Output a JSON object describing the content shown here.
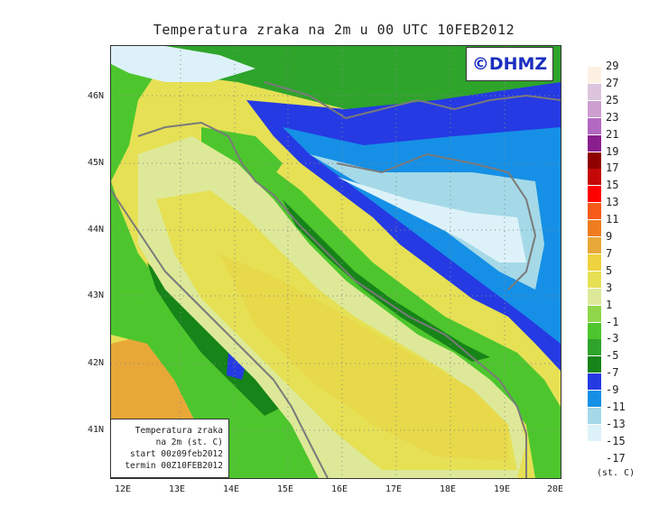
{
  "title": "Temperatura zraka na 2m u 00 UTC 10FEB2012",
  "copyright": "©DHMZ",
  "info_box": [
    "Temperatura zraka",
    "na 2m (st. C)",
    "start 00z09feb2012",
    "termin 00Z10FEB2012"
  ],
  "lat_labels": [
    "46N",
    "45N",
    "44N",
    "43N",
    "42N",
    "41N"
  ],
  "lon_labels": [
    "12E",
    "13E",
    "14E",
    "15E",
    "16E",
    "17E",
    "18E",
    "19E",
    "20E"
  ],
  "legend": {
    "units": "(st. C)",
    "labels": [
      "29",
      "27",
      "25",
      "23",
      "21",
      "19",
      "17",
      "15",
      "13",
      "11",
      "9",
      "7",
      "5",
      "3",
      "1",
      "-1",
      "-3",
      "-5",
      "-7",
      "-9",
      "-11",
      "-13",
      "-15",
      "-17"
    ],
    "colors": [
      "#fdf0e3",
      "#ddc4dd",
      "#cc9fd0",
      "#b268c0",
      "#8a1e8e",
      "#8f0000",
      "#c40808",
      "#ff0000",
      "#f55a1a",
      "#ef7d20",
      "#e8a838",
      "#eed23e",
      "#e6e055",
      "#dde998",
      "#8fd64a",
      "#4dc62d",
      "#2ea42b",
      "#168418",
      "#253ae2",
      "#1590e6",
      "#a5d9e8",
      "#ddf2f8",
      "#ffffff"
    ]
  },
  "map_colors": {
    "sea_warm": "#e8d94a",
    "sea_mid": "#e6e055",
    "coast_light": "#dde998",
    "land_green": "#4dc62d",
    "land_dark": "#2ea42b",
    "forest": "#168418",
    "cold_blue": "#253ae2",
    "light_blue": "#1590e6",
    "ice": "#a5d9e8",
    "snow": "#ddf2f8",
    "orange": "#e8a838",
    "outline": "#7a7a7a"
  }
}
